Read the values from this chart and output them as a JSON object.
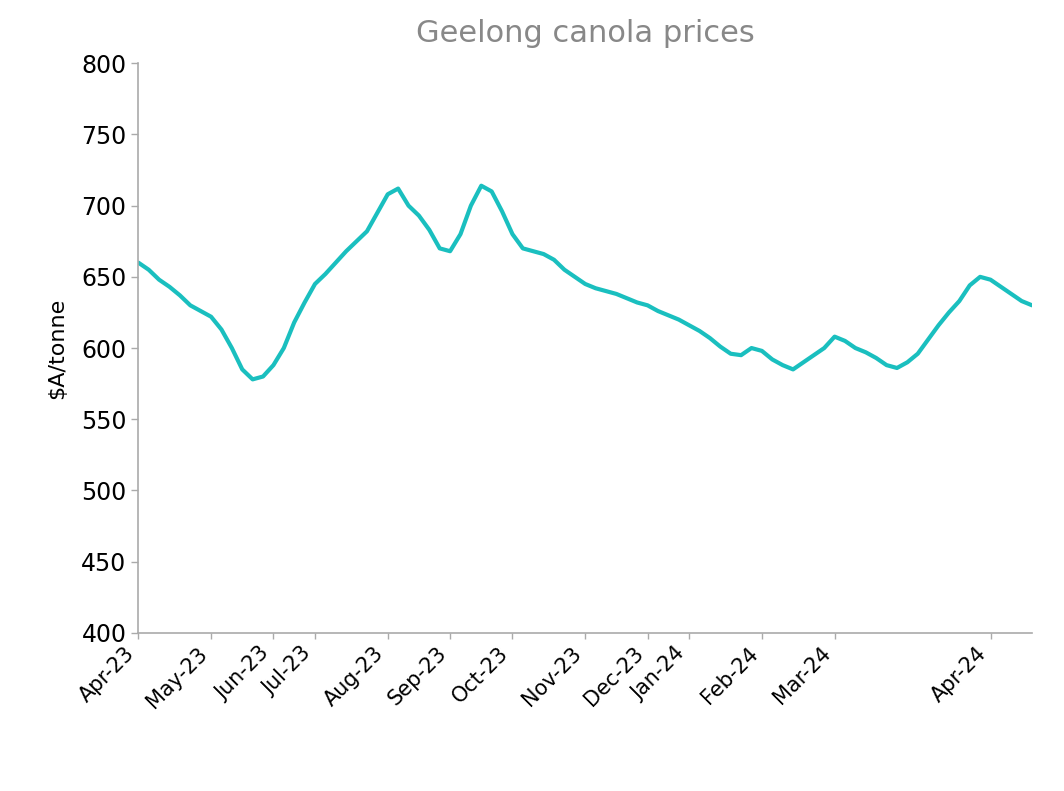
{
  "title": "Geelong canola prices",
  "ylabel": "$A/tonne",
  "ylim": [
    400,
    800
  ],
  "yticks": [
    400,
    450,
    500,
    550,
    600,
    650,
    700,
    750,
    800
  ],
  "line_color": "#1ABFBF",
  "line_width": 3.0,
  "background_color": "#ffffff",
  "title_color": "#888888",
  "title_fontsize": 22,
  "ylabel_fontsize": 16,
  "xtick_fontsize": 15,
  "ytick_fontsize": 17,
  "x_labels": [
    "Apr-23",
    "May-23",
    "Jun-23",
    "Jul-23",
    "Aug-23",
    "Sep-23",
    "Oct-23",
    "Nov-23",
    "Dec-23",
    "Jan-24",
    "Feb-24",
    "Mar-24",
    "Apr-24"
  ],
  "y_values": [
    660,
    655,
    648,
    643,
    637,
    630,
    626,
    622,
    613,
    600,
    585,
    578,
    580,
    588,
    600,
    618,
    632,
    645,
    652,
    660,
    668,
    675,
    682,
    695,
    708,
    712,
    700,
    693,
    683,
    670,
    668,
    680,
    700,
    714,
    710,
    696,
    680,
    670,
    668,
    666,
    662,
    655,
    650,
    645,
    642,
    640,
    638,
    635,
    632,
    630,
    626,
    623,
    620,
    616,
    612,
    607,
    601,
    596,
    595,
    600,
    598,
    592,
    588,
    585,
    590,
    595,
    600,
    608,
    605,
    600,
    597,
    593,
    588,
    586,
    590,
    596,
    606,
    616,
    625,
    633,
    644,
    650,
    648,
    643,
    638,
    633,
    630
  ]
}
